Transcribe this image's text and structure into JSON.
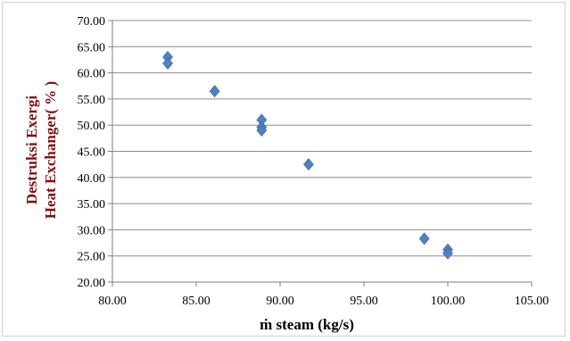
{
  "chart_data": {
    "type": "scatter",
    "title": "",
    "xlabel": "ṁ steam (kg/s)",
    "ylabel_lines": [
      "Destruksi Exergi",
      "Heat Exchanger( % )"
    ],
    "xlim": [
      80,
      105
    ],
    "ylim": [
      20,
      70
    ],
    "x_ticks": [
      "80.00",
      "85.00",
      "90.00",
      "95.00",
      "100.00",
      "105.00"
    ],
    "y_ticks": [
      "20.00",
      "25.00",
      "30.00",
      "35.00",
      "40.00",
      "45.00",
      "50.00",
      "55.00",
      "60.00",
      "65.00",
      "70.00"
    ],
    "grid": true,
    "legend": "none",
    "marker": "diamond",
    "marker_color": "#4f81bd",
    "series": [
      {
        "points": [
          {
            "x": 83.3,
            "y": 63.0
          },
          {
            "x": 83.3,
            "y": 61.8
          },
          {
            "x": 86.1,
            "y": 56.5
          },
          {
            "x": 88.9,
            "y": 51.0
          },
          {
            "x": 88.9,
            "y": 49.6
          },
          {
            "x": 88.9,
            "y": 49.0
          },
          {
            "x": 91.7,
            "y": 42.5
          },
          {
            "x": 98.6,
            "y": 28.3
          },
          {
            "x": 100.0,
            "y": 26.2
          },
          {
            "x": 100.0,
            "y": 25.5
          }
        ]
      }
    ]
  }
}
